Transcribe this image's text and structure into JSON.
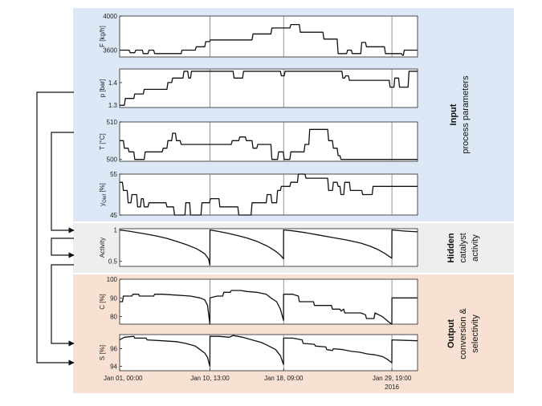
{
  "colors": {
    "input_bg": "#dce8f6",
    "hidden_bg": "#eeeeee",
    "output_bg": "#f8e0d2",
    "line": "#111111",
    "divider": "#777777"
  },
  "sections": {
    "input": {
      "title": "Input",
      "subtitle": "process parameters"
    },
    "hidden": {
      "title": "Hidden",
      "subtitle": "catalyst activity"
    },
    "output": {
      "title": "Output",
      "subtitle": "conversion & selectivity"
    }
  },
  "x_ticks": [
    "Jan 01, 00:00",
    "Jan 10, 13:00",
    "Jan 18, 09:00",
    "Jan 29, 19:00"
  ],
  "x_year": "2016",
  "chart_data": [
    {
      "type": "line",
      "ylabel": "F [kg/h]",
      "ylim": [
        3520,
        4000
      ],
      "yticks": [
        "4000",
        "3600"
      ],
      "x": [
        0,
        1.0,
        1.1,
        1.6,
        1.7,
        2.4,
        2.5,
        3.0,
        3.1,
        3.6,
        3.7,
        6.5,
        6.6,
        8.0,
        8.1,
        9.0,
        9.1,
        9.5,
        9.6,
        14.0,
        14.1,
        16.0,
        16.1,
        18.0,
        18.1,
        19.0,
        19.1,
        21.5,
        21.6,
        23.0,
        23.1,
        24.0,
        24.1,
        24.5,
        24.6,
        25.5,
        25.6,
        26.0,
        26.1,
        28.0,
        28.1,
        29.8,
        29.9,
        30.0,
        30.1,
        31.5
      ],
      "y": [
        3600,
        3600,
        3570,
        3570,
        3600,
        3600,
        3560,
        3560,
        3600,
        3600,
        3560,
        3560,
        3600,
        3600,
        3640,
        3640,
        3700,
        3700,
        3720,
        3720,
        3790,
        3790,
        3860,
        3860,
        3900,
        3900,
        3810,
        3810,
        3730,
        3730,
        3560,
        3560,
        3600,
        3600,
        3560,
        3560,
        3690,
        3690,
        3640,
        3640,
        3560,
        3560,
        3540,
        3540,
        3600,
        3600
      ]
    },
    {
      "type": "line",
      "ylabel": "p [bar]",
      "ylim": [
        1.29,
        1.46
      ],
      "yticks": [
        "1.4",
        "1.3"
      ],
      "x": [
        0,
        0.5,
        0.6,
        1.5,
        1.6,
        2.5,
        2.6,
        5.0,
        5.1,
        5.5,
        5.6,
        6.7,
        6.8,
        7.2,
        7.3,
        7.5,
        7.6,
        12.0,
        12.1,
        13.0,
        13.1,
        17.0,
        17.1,
        17.4,
        17.5,
        18.0,
        18.1,
        23.5,
        23.6,
        23.8,
        23.9,
        24.2,
        24.3,
        24.8,
        24.9,
        28.5,
        28.6,
        29.0,
        29.1,
        29.5,
        29.6,
        30.5,
        30.6,
        31.5
      ],
      "y": [
        1.3,
        1.3,
        1.33,
        1.33,
        1.35,
        1.35,
        1.37,
        1.37,
        1.4,
        1.4,
        1.42,
        1.42,
        1.45,
        1.45,
        1.42,
        1.42,
        1.45,
        1.45,
        1.42,
        1.42,
        1.45,
        1.45,
        1.43,
        1.43,
        1.45,
        1.45,
        1.45,
        1.45,
        1.42,
        1.42,
        1.43,
        1.43,
        1.41,
        1.41,
        1.41,
        1.41,
        1.38,
        1.38,
        1.42,
        1.42,
        1.38,
        1.38,
        1.45,
        1.45
      ]
    },
    {
      "type": "line",
      "ylabel": "T [°C]",
      "ylim": [
        499.5,
        510
      ],
      "yticks": [
        "510",
        "500"
      ],
      "x": [
        0,
        0.4,
        0.5,
        0.9,
        1.0,
        1.5,
        1.6,
        2.6,
        2.7,
        3.7,
        3.8,
        4.5,
        4.6,
        5.0,
        5.1,
        5.5,
        5.6,
        5.9,
        6.0,
        6.4,
        6.5,
        9.4,
        9.5,
        11.8,
        11.9,
        12.6,
        12.7,
        13.3,
        13.4,
        14.0,
        14.1,
        14.5,
        14.6,
        16.0,
        16.1,
        16.7,
        16.8,
        17.3,
        17.4,
        18.0,
        18.1,
        19.5,
        19.6,
        20.0,
        20.1,
        22.0,
        22.1,
        22.5,
        22.6,
        23.0,
        23.1,
        23.3,
        23.4,
        31.5
      ],
      "y": [
        505,
        505,
        503,
        503,
        502,
        502,
        500,
        500,
        502,
        502,
        502,
        502,
        503,
        503,
        505,
        505,
        507,
        507,
        505,
        505,
        504,
        504,
        504,
        504,
        505,
        505,
        506,
        506,
        505,
        505,
        503,
        503,
        504,
        504,
        500,
        500,
        502,
        502,
        500,
        500,
        502,
        502,
        504,
        504,
        508,
        508,
        505,
        505,
        503,
        503,
        501,
        501,
        500,
        500
      ]
    },
    {
      "type": "line",
      "ylabel": "y_Olef [%]",
      "ylim": [
        45,
        55
      ],
      "yticks": [
        "55",
        "45"
      ],
      "x": [
        0,
        0.3,
        0.4,
        0.8,
        0.9,
        1.2,
        1.3,
        1.8,
        1.9,
        2.2,
        2.3,
        2.5,
        2.6,
        3.0,
        3.1,
        4.3,
        4.4,
        4.9,
        5.0,
        5.7,
        5.8,
        6.9,
        7.0,
        7.4,
        7.5,
        8.6,
        8.7,
        9.5,
        9.6,
        10.5,
        10.6,
        12.5,
        12.6,
        13.9,
        14.0,
        15.5,
        15.6,
        16.0,
        16.1,
        16.6,
        16.7,
        17.0,
        17.1,
        18.0,
        18.1,
        18.8,
        18.9,
        19.6,
        19.7,
        20.5,
        20.6,
        22.0,
        22.1,
        22.5,
        22.6,
        23.0,
        23.1,
        23.3,
        23.4,
        23.7,
        23.8,
        24.3,
        24.4,
        25.6,
        25.7,
        26.7,
        26.8,
        31.5
      ],
      "y": [
        53,
        53,
        51,
        51,
        48,
        48,
        50,
        50,
        47,
        47,
        49,
        49,
        47,
        47,
        48,
        48,
        48,
        48,
        47,
        47,
        45,
        45,
        48,
        48,
        45,
        45,
        48,
        48,
        49,
        49,
        47,
        47,
        45,
        45,
        48,
        48,
        50,
        50,
        48,
        48,
        51,
        51,
        52,
        52,
        53,
        53,
        55,
        55,
        54,
        54,
        54,
        54,
        51,
        51,
        53,
        53,
        52,
        52,
        50,
        50,
        53,
        53,
        51,
        51,
        50,
        50,
        52,
        52
      ]
    },
    {
      "type": "line",
      "ylabel": "Activity",
      "ylim": [
        0.42,
        1.02
      ],
      "yticks": [
        "1",
        "0.5"
      ],
      "x": [
        0,
        1,
        2,
        3,
        4,
        5,
        6,
        7,
        8,
        8.5,
        9.0,
        9.4,
        9.54,
        9.55,
        10.5,
        11.5,
        12.5,
        13.5,
        14.5,
        15.5,
        16.0,
        16.5,
        17.0,
        17.33,
        17.34,
        18.3,
        19.5,
        21,
        22.5,
        24,
        25.5,
        26.5,
        27.3,
        28.0,
        28.6,
        28.78,
        28.79,
        29.5,
        30.3,
        31.5
      ],
      "y": [
        1.0,
        0.98,
        0.955,
        0.93,
        0.9,
        0.865,
        0.82,
        0.77,
        0.71,
        0.67,
        0.62,
        0.54,
        0.44,
        1.0,
        0.975,
        0.945,
        0.91,
        0.87,
        0.82,
        0.75,
        0.71,
        0.66,
        0.6,
        0.54,
        1.0,
        0.985,
        0.96,
        0.92,
        0.88,
        0.84,
        0.79,
        0.74,
        0.69,
        0.63,
        0.57,
        0.55,
        1.0,
        0.99,
        0.98,
        0.97
      ]
    },
    {
      "type": "line",
      "ylabel": "C [%]",
      "ylim": [
        76,
        100
      ],
      "yticks": [
        "100",
        "90",
        "80"
      ],
      "x": [
        0,
        0.3,
        0.4,
        1.3,
        1.4,
        2.0,
        2.1,
        3.6,
        3.7,
        4.5,
        6.0,
        7.5,
        8.5,
        9.0,
        9.3,
        9.54,
        9.55,
        10.3,
        10.9,
        11.0,
        11.7,
        11.8,
        12.8,
        13.4,
        14.5,
        15.5,
        16.0,
        16.6,
        17.0,
        17.33,
        17.34,
        18.3,
        18.9,
        19.0,
        20.5,
        20.6,
        21.5,
        22.4,
        22.5,
        23.3,
        23.4,
        23.7,
        23.8,
        25.5,
        26.0,
        26.1,
        26.9,
        27.0,
        27.8,
        28.5,
        28.78,
        28.79,
        31.5
      ],
      "y": [
        88,
        88,
        91,
        91,
        92,
        92,
        91,
        91,
        92,
        92,
        91.5,
        91,
        90,
        89,
        86,
        76,
        90,
        91,
        91,
        93,
        93,
        94,
        94,
        93.5,
        93,
        92,
        90,
        88,
        84,
        78,
        92,
        92,
        91,
        88,
        88,
        86,
        86,
        86,
        84,
        84,
        83,
        84,
        82,
        82,
        81,
        79,
        79,
        82,
        80,
        77,
        76,
        90,
        90
      ]
    },
    {
      "type": "line",
      "ylabel": "S [%]",
      "ylim": [
        93.5,
        97.6
      ],
      "yticks": [
        "96",
        "94"
      ],
      "x": [
        0,
        0.5,
        1.5,
        1.6,
        2.8,
        2.9,
        4.5,
        6.0,
        7.0,
        8.0,
        8.5,
        9.0,
        9.3,
        9.54,
        9.55,
        10.5,
        11.6,
        12.0,
        13.0,
        14.0,
        15.0,
        15.6,
        16.5,
        17.0,
        17.33,
        17.34,
        18.3,
        19.3,
        19.4,
        20.6,
        20.7,
        21.8,
        21.9,
        22.5,
        22.6,
        23.6,
        24.5,
        25.4,
        26.2,
        27.0,
        27.8,
        28.3,
        28.78,
        28.79,
        31.5
      ],
      "y": [
        97.0,
        97.3,
        97.4,
        97.2,
        97.2,
        97.0,
        96.9,
        96.8,
        96.6,
        96.3,
        95.9,
        95.5,
        95.0,
        94.0,
        97.4,
        97.4,
        97.3,
        97.5,
        97.3,
        97.0,
        96.7,
        96.4,
        95.9,
        95.2,
        94.2,
        97.2,
        97.2,
        97.0,
        96.6,
        96.5,
        96.3,
        96.2,
        95.9,
        95.8,
        96.0,
        95.9,
        95.7,
        95.6,
        95.4,
        95.3,
        95.1,
        94.8,
        94.4,
        97.0,
        96.9
      ]
    }
  ]
}
